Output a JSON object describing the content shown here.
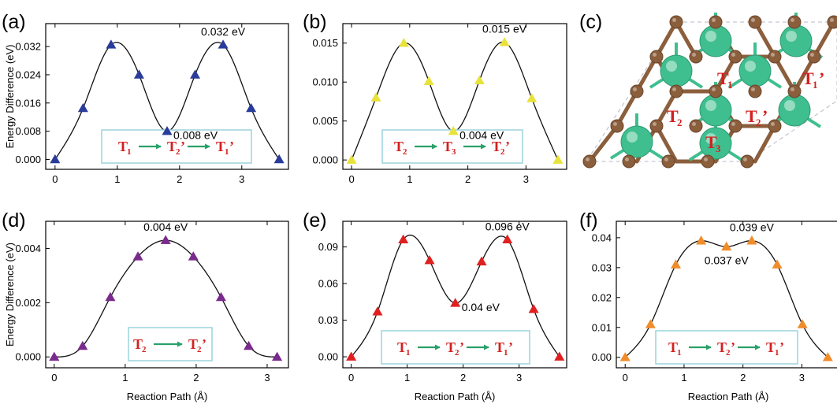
{
  "figure": {
    "panel_c": {
      "letter": "(c)",
      "sites": [
        {
          "base": "T",
          "sub": "1",
          "prime": ""
        },
        {
          "base": "T",
          "sub": "1",
          "prime": "’"
        },
        {
          "base": "T",
          "sub": "2",
          "prime": ""
        },
        {
          "base": "T",
          "sub": "2",
          "prime": "’"
        },
        {
          "base": "T",
          "sub": "3",
          "prime": ""
        }
      ],
      "colors": {
        "large_atom": "#3fbf8f",
        "small_atom": "#8b5e3c",
        "bond_green": "#3fbf8f",
        "bond_brown": "#8b5e3c",
        "site_label": "#d42020"
      }
    }
  },
  "chart_data": [
    {
      "panel": "(a)",
      "type": "line",
      "marker": "triangle",
      "color": "#2a3c9a",
      "xlabel": "",
      "ylabel": "Energy Difference (eV)",
      "xlim": [
        -0.15,
        3.75
      ],
      "ylim": [
        -0.0028,
        0.0385
      ],
      "xticks": [
        0,
        1,
        2,
        3
      ],
      "xtick_labels": [
        "0",
        "1",
        "2",
        "3"
      ],
      "yticks": [
        0,
        0.008,
        0.016,
        0.024,
        0.032
      ],
      "ytick_labels": [
        "0.000",
        "0.008",
        "0.016",
        "0.024",
        "0.032"
      ],
      "points": {
        "x": [
          0,
          0.45,
          0.9,
          1.35,
          1.8,
          2.25,
          2.7,
          3.15,
          3.6
        ],
        "y": [
          0,
          0.0145,
          0.0325,
          0.024,
          0.008,
          0.024,
          0.0325,
          0.0145,
          0
        ]
      },
      "annotations": [
        {
          "text": "0.032 eV",
          "x": 2.7,
          "y": 0.0325,
          "pos": "above"
        },
        {
          "text": "0.008 eV",
          "x": 1.8,
          "y": 0.008,
          "pos": "right"
        }
      ],
      "path_label": [
        {
          "base": "T",
          "sub": "1",
          "prime": ""
        },
        {
          "base": "T",
          "sub": "2",
          "prime": "’"
        },
        {
          "base": "T",
          "sub": "1",
          "prime": "’"
        }
      ]
    },
    {
      "panel": "(b)",
      "type": "line",
      "marker": "triangle",
      "color": "#e8e23a",
      "xlabel": "",
      "ylabel": "",
      "xlim": [
        -0.15,
        3.7
      ],
      "ylim": [
        -0.0012,
        0.0175
      ],
      "xticks": [
        0,
        1,
        2,
        3
      ],
      "xtick_labels": [
        "0",
        "1",
        "2",
        "3"
      ],
      "yticks": [
        0,
        0.005,
        0.01,
        0.015
      ],
      "ytick_labels": [
        "0.000",
        "0.005",
        "0.010",
        "0.015"
      ],
      "points": {
        "x": [
          0,
          0.42,
          0.9,
          1.33,
          1.75,
          2.2,
          2.63,
          3.1,
          3.55
        ],
        "y": [
          0,
          0.008,
          0.015,
          0.0101,
          0.0037,
          0.0102,
          0.0151,
          0.0079,
          0
        ]
      },
      "annotations": [
        {
          "text": "0.015 eV",
          "x": 2.63,
          "y": 0.0151,
          "pos": "above"
        },
        {
          "text": "0.004 eV",
          "x": 1.75,
          "y": 0.0037,
          "pos": "right"
        }
      ],
      "path_label": [
        {
          "base": "T",
          "sub": "2",
          "prime": ""
        },
        {
          "base": "T",
          "sub": "3",
          "prime": ""
        },
        {
          "base": "T",
          "sub": "2",
          "prime": "’"
        }
      ]
    },
    {
      "panel": "(d)",
      "type": "line",
      "marker": "triangle",
      "color": "#7a2a8c",
      "xlabel": "Reaction Path (Å)",
      "ylabel": "Energy Difference (eV)",
      "xlim": [
        -0.12,
        3.3
      ],
      "ylim": [
        -0.0004,
        0.005
      ],
      "xticks": [
        0,
        1,
        2,
        3
      ],
      "xtick_labels": [
        "0",
        "1",
        "2",
        "3"
      ],
      "yticks": [
        0,
        0.002,
        0.004
      ],
      "ytick_labels": [
        "0.000",
        "0.002",
        "0.004"
      ],
      "points": {
        "x": [
          0,
          0.4,
          0.79,
          1.18,
          1.57,
          1.96,
          2.35,
          2.74,
          3.14
        ],
        "y": [
          0,
          0.0004,
          0.0022,
          0.0037,
          0.0043,
          0.0037,
          0.0022,
          0.0004,
          0
        ]
      },
      "annotations": [
        {
          "text": "0.004 eV",
          "x": 1.57,
          "y": 0.0043,
          "pos": "above"
        }
      ],
      "path_label": [
        {
          "base": "T",
          "sub": "2",
          "prime": ""
        },
        {
          "base": "T",
          "sub": "2",
          "prime": "’"
        }
      ]
    },
    {
      "panel": "(e)",
      "type": "line",
      "marker": "triangle",
      "color": "#e02020",
      "xlabel": "Reaction Path (Å)",
      "ylabel": "",
      "xlim": [
        -0.15,
        3.85
      ],
      "ylim": [
        -0.009,
        0.111
      ],
      "xticks": [
        0,
        1,
        2,
        3
      ],
      "xtick_labels": [
        "0",
        "1",
        "2",
        "3"
      ],
      "yticks": [
        0,
        0.03,
        0.06,
        0.09
      ],
      "ytick_labels": [
        "0.00",
        "0.03",
        "0.06",
        "0.09"
      ],
      "points": {
        "x": [
          0,
          0.47,
          0.93,
          1.4,
          1.86,
          2.33,
          2.79,
          3.26,
          3.72
        ],
        "y": [
          0,
          0.037,
          0.096,
          0.079,
          0.044,
          0.078,
          0.096,
          0.039,
          0
        ]
      },
      "annotations": [
        {
          "text": "0.096 eV",
          "x": 2.79,
          "y": 0.096,
          "pos": "above"
        },
        {
          "text": "0.04 eV",
          "x": 1.86,
          "y": 0.044,
          "pos": "right"
        }
      ],
      "path_label": [
        {
          "base": "T",
          "sub": "1",
          "prime": ""
        },
        {
          "base": "T",
          "sub": "2",
          "prime": "’"
        },
        {
          "base": "T",
          "sub": "1",
          "prime": "’"
        }
      ]
    },
    {
      "panel": "(f)",
      "type": "line",
      "marker": "triangle",
      "color": "#f08c2a",
      "xlabel": "Reaction Path (Å)",
      "ylabel": "",
      "xlim": [
        -0.15,
        3.65
      ],
      "ylim": [
        -0.0035,
        0.0455
      ],
      "xticks": [
        0,
        1,
        2,
        3
      ],
      "xtick_labels": [
        "0",
        "1",
        "2",
        "3"
      ],
      "yticks": [
        0,
        0.01,
        0.02,
        0.03,
        0.04
      ],
      "ytick_labels": [
        "0.00",
        "0.01",
        "0.02",
        "0.03",
        "0.04"
      ],
      "points": {
        "x": [
          0,
          0.43,
          0.86,
          1.29,
          1.72,
          2.15,
          2.58,
          3.01,
          3.44
        ],
        "y": [
          0,
          0.011,
          0.031,
          0.039,
          0.037,
          0.039,
          0.031,
          0.011,
          0
        ]
      },
      "annotations": [
        {
          "text": "0.039 eV",
          "x": 2.15,
          "y": 0.039,
          "pos": "above"
        },
        {
          "text": "0.037 eV",
          "x": 1.72,
          "y": 0.037,
          "pos": "below"
        }
      ],
      "path_label": [
        {
          "base": "T",
          "sub": "1",
          "prime": ""
        },
        {
          "base": "T",
          "sub": "2",
          "prime": "’"
        },
        {
          "base": "T",
          "sub": "1",
          "prime": "’"
        }
      ]
    }
  ]
}
